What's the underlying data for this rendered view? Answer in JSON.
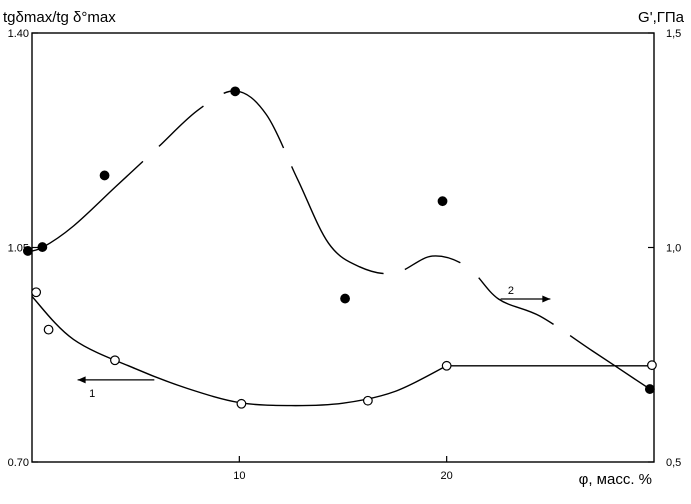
{
  "chart_data": {
    "type": "scatter",
    "title": "",
    "left_axis": {
      "label": "tgδmax/tg δ°max",
      "range": [
        0.7,
        1.4
      ],
      "ticks": [
        {
          "value": 0.7,
          "label": "0.70"
        },
        {
          "value": 1.05,
          "label": "1.05"
        },
        {
          "value": 1.4,
          "label": "1.40"
        }
      ]
    },
    "right_axis": {
      "label": "G',ГПа",
      "range": [
        0.5,
        1.5
      ],
      "ticks": [
        {
          "value": 0.5,
          "label": "0,5"
        },
        {
          "value": 1.0,
          "label": "1,0"
        },
        {
          "value": 1.5,
          "label": "1,5"
        }
      ]
    },
    "x_axis": {
      "label": "φ, масс. %",
      "range": [
        0,
        30
      ],
      "ticks": [
        {
          "value": 10,
          "label": "10"
        },
        {
          "value": 20,
          "label": "20"
        }
      ]
    },
    "grid": false,
    "series": [
      {
        "name": "1",
        "axis": "left",
        "marker": "open-circle",
        "points": [
          {
            "x": 0.2,
            "y": 0.977
          },
          {
            "x": 0.8,
            "y": 0.916
          },
          {
            "x": 4.0,
            "y": 0.866
          },
          {
            "x": 10.1,
            "y": 0.795
          },
          {
            "x": 16.2,
            "y": 0.8
          },
          {
            "x": 20.0,
            "y": 0.857
          },
          {
            "x": 29.9,
            "y": 0.858
          }
        ],
        "curve": [
          {
            "x": 0.0,
            "y": 0.97
          },
          {
            "x": 2.0,
            "y": 0.9
          },
          {
            "x": 5.0,
            "y": 0.852
          },
          {
            "x": 7.5,
            "y": 0.82
          },
          {
            "x": 10.0,
            "y": 0.797
          },
          {
            "x": 12.5,
            "y": 0.792
          },
          {
            "x": 15.0,
            "y": 0.796
          },
          {
            "x": 17.5,
            "y": 0.815
          },
          {
            "x": 20.0,
            "y": 0.857
          },
          {
            "x": 30.0,
            "y": 0.857
          }
        ],
        "arrow": "left"
      },
      {
        "name": "2",
        "axis": "right",
        "marker": "filled-circle",
        "points": [
          {
            "x": -0.2,
            "y": 0.992
          },
          {
            "x": 0.5,
            "y": 1.001
          },
          {
            "x": 3.5,
            "y": 1.168
          },
          {
            "x": 9.8,
            "y": 1.364
          },
          {
            "x": 15.1,
            "y": 0.881
          },
          {
            "x": 19.8,
            "y": 1.108
          },
          {
            "x": 29.8,
            "y": 0.67
          }
        ],
        "curve": [
          {
            "x": -0.3,
            "y": 0.99
          },
          {
            "x": 0.5,
            "y": 1.0
          },
          {
            "x": 2.0,
            "y": 1.05
          },
          {
            "x": 4.0,
            "y": 1.14
          },
          {
            "x": 6.0,
            "y": 1.23
          },
          {
            "x": 8.0,
            "y": 1.32
          },
          {
            "x": 9.8,
            "y": 1.365
          },
          {
            "x": 11.3,
            "y": 1.31
          },
          {
            "x": 12.8,
            "y": 1.16
          },
          {
            "x": 14.3,
            "y": 1.01
          },
          {
            "x": 15.8,
            "y": 0.955
          },
          {
            "x": 17.5,
            "y": 0.94
          },
          {
            "x": 19.3,
            "y": 0.98
          },
          {
            "x": 21.0,
            "y": 0.955
          },
          {
            "x": 22.5,
            "y": 0.88
          },
          {
            "x": 24.5,
            "y": 0.84
          },
          {
            "x": 27.0,
            "y": 0.76
          },
          {
            "x": 29.8,
            "y": 0.67
          }
        ],
        "arrow": "right"
      }
    ]
  }
}
